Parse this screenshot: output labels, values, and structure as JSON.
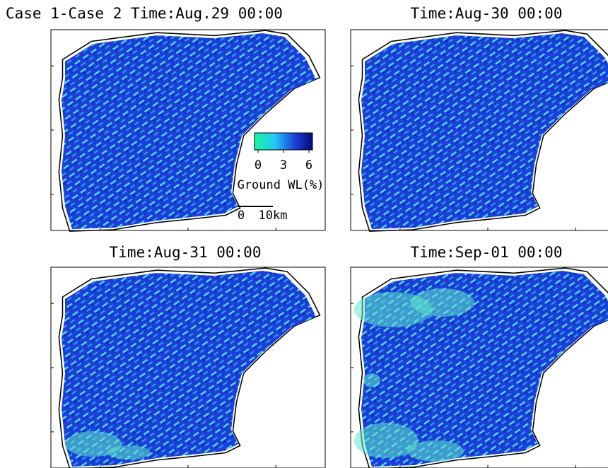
{
  "panels": [
    {
      "title": "Case 1-Case 2 Time:Aug.29 00:00"
    },
    {
      "title": "Time:Aug-30 00:00"
    },
    {
      "title": "Time:Aug-31 00:00"
    },
    {
      "title": "Time:Sep-01 00:00"
    }
  ],
  "colorbar": {
    "ticks": [
      0,
      3,
      6
    ],
    "label": "Ground WL(%)"
  },
  "scale_bar": {
    "labels": [
      "0",
      "10km"
    ]
  }
}
